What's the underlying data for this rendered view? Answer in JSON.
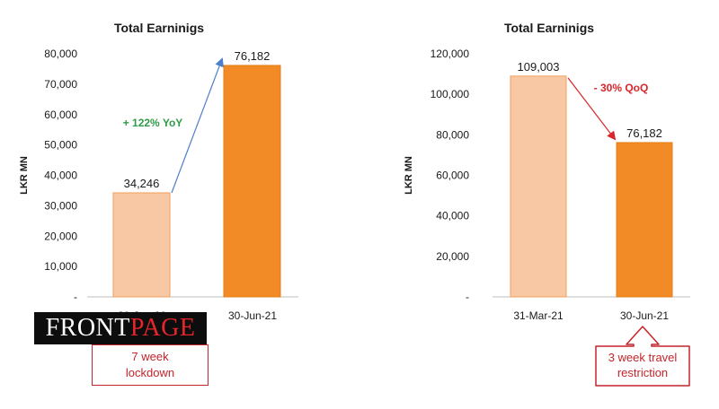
{
  "chart_data": [
    {
      "type": "bar",
      "title": "Total Earninigs",
      "ylabel": "LKR MN",
      "xlabel": "",
      "ylim": [
        0,
        80000
      ],
      "yticks": [
        "-",
        "10,000",
        "20,000",
        "30,000",
        "40,000",
        "50,000",
        "60,000",
        "70,000",
        "80,000"
      ],
      "categories": [
        "30-Jun-20",
        "30-Jun-21"
      ],
      "values": [
        34246,
        76182
      ],
      "value_labels": [
        "34,246",
        "76,182"
      ],
      "bar_colors": [
        "#f8c8a4",
        "#f28a25"
      ],
      "annotation": {
        "text": "+ 122% YoY",
        "color": "#2e9b46",
        "arrow_color": "#4f7fc9"
      },
      "grid": false
    },
    {
      "type": "bar",
      "title": "Total Earninigs",
      "ylabel": "LKR MN",
      "xlabel": "",
      "ylim": [
        0,
        120000
      ],
      "yticks": [
        "-",
        "20,000",
        "40,000",
        "60,000",
        "80,000",
        "100,000",
        "120,000"
      ],
      "categories": [
        "31-Mar-21",
        "30-Jun-21"
      ],
      "values": [
        109003,
        76182
      ],
      "value_labels": [
        "109,003",
        "76,182"
      ],
      "bar_colors": [
        "#f8c8a4",
        "#f28a25"
      ],
      "annotation": {
        "text": "- 30% QoQ",
        "color": "#d9262b",
        "arrow_color": "#d9262b"
      },
      "grid": false
    }
  ],
  "callouts": {
    "left": {
      "line1": "7 week",
      "line2": "lockdown"
    },
    "right": {
      "line1": "3 week travel",
      "line2": "restriction"
    }
  },
  "logo": {
    "part1": "FRONT",
    "part2": "PAGE"
  },
  "colors": {
    "axis": "#bfbfbf",
    "text": "#1a1a1a",
    "callout": "#c4242b"
  }
}
